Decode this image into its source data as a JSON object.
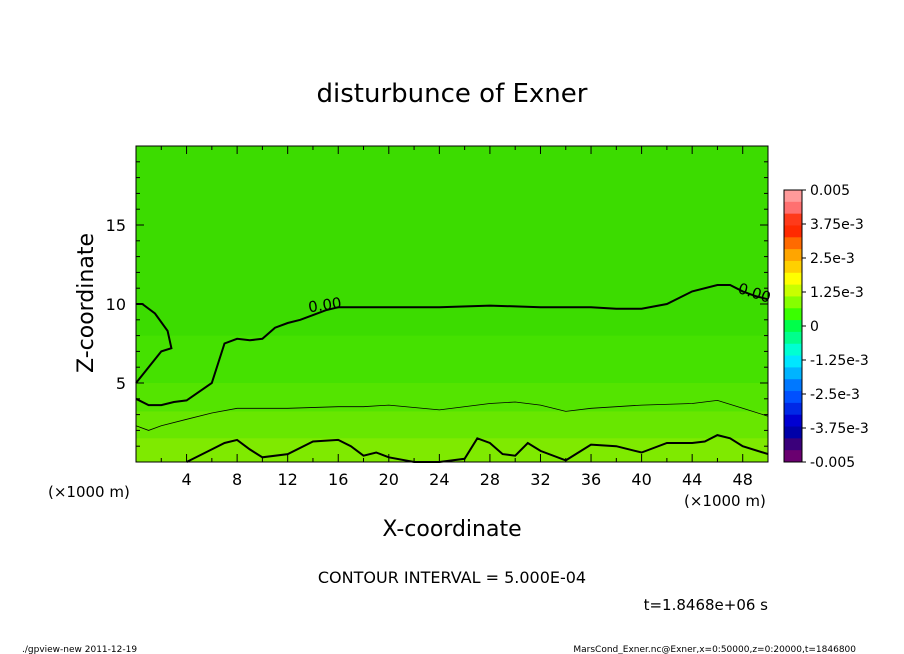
{
  "chart_data": {
    "type": "heatmap",
    "title": "disturbunce of Exner",
    "xlabel": "X-coordinate",
    "ylabel": "Z-coordinate",
    "x_unit_left": "(×1000 m)",
    "x_unit_right": "(×1000 m)",
    "xlim": [
      0,
      50
    ],
    "ylim": [
      0,
      20
    ],
    "x_ticks": [
      "4",
      "8",
      "12",
      "16",
      "20",
      "24",
      "28",
      "32",
      "36",
      "40",
      "44",
      "48"
    ],
    "y_ticks": [
      "5",
      "10",
      "15"
    ],
    "contour_labels": [
      "0.00",
      "0.00"
    ],
    "contour_interval_text": "CONTOUR INTERVAL = 5.000E-04",
    "time_text": "t=1.8468e+06 s",
    "footer_left": "./gpview-new   2011-12-19",
    "footer_right": "MarsCond_Exner.nc@Exner,x=0:50000,z=0:20000,t=1846800",
    "zero_contour_upper": {
      "x": [
        0,
        1,
        2,
        3,
        4,
        6,
        7,
        8,
        9,
        10,
        11,
        12,
        13,
        14,
        15,
        16,
        20,
        24,
        28,
        32,
        36,
        38,
        40,
        42,
        44,
        46,
        47,
        48,
        49,
        50
      ],
      "z": [
        4.0,
        3.6,
        3.6,
        3.8,
        3.9,
        5.0,
        7.5,
        7.8,
        7.7,
        7.8,
        8.5,
        8.8,
        9.0,
        9.3,
        9.6,
        9.8,
        9.8,
        9.8,
        9.9,
        9.8,
        9.8,
        9.7,
        9.7,
        10.0,
        10.8,
        11.2,
        11.2,
        10.8,
        10.5,
        10.3
      ]
    },
    "zero_contour_left_top": {
      "x": [
        0,
        0.5,
        1.5,
        2.5,
        2.8,
        2.0,
        1.0,
        0
      ],
      "z": [
        10.0,
        10.0,
        9.4,
        8.3,
        7.2,
        7.0,
        6.0,
        5.0
      ]
    },
    "thin_contour": {
      "x": [
        0,
        1,
        2,
        4,
        6,
        8,
        12,
        16,
        18,
        20,
        24,
        28,
        30,
        32,
        34,
        36,
        40,
        44,
        46,
        48,
        50
      ],
      "z": [
        2.3,
        2.0,
        2.3,
        2.7,
        3.1,
        3.4,
        3.4,
        3.5,
        3.5,
        3.6,
        3.3,
        3.7,
        3.8,
        3.6,
        3.2,
        3.4,
        3.6,
        3.7,
        3.9,
        3.4,
        2.9
      ]
    },
    "bottom_contour": {
      "x": [
        4,
        6,
        7,
        8,
        9,
        10,
        12,
        14,
        16,
        17,
        18,
        19,
        20,
        22,
        24,
        26,
        27,
        28,
        29,
        30,
        31,
        32,
        34,
        36,
        38,
        40,
        42,
        44,
        45,
        46,
        47,
        48,
        50
      ],
      "z": [
        0,
        0.8,
        1.2,
        1.4,
        0.8,
        0.3,
        0.5,
        1.3,
        1.4,
        1.0,
        0.4,
        0.6,
        0.3,
        0,
        0,
        0.2,
        1.5,
        1.2,
        0.5,
        0.4,
        1.2,
        0.7,
        0.1,
        1.1,
        1.0,
        0.6,
        1.2,
        1.2,
        1.3,
        1.7,
        1.5,
        1.0,
        0.5
      ]
    },
    "colorbar": {
      "labels": [
        "0.005",
        "3.75e-3",
        "2.5e-3",
        "1.25e-3",
        "0",
        "-1.25e-3",
        "-2.5e-3",
        "-3.75e-3",
        "-0.005"
      ],
      "colors": [
        "#ff9a9a",
        "#ff7070",
        "#ff3a1a",
        "#ff2a00",
        "#ff6a00",
        "#ffa500",
        "#ffd000",
        "#ffff00",
        "#c8ff00",
        "#86ff00",
        "#3aff00",
        "#00ff4a",
        "#00ff8c",
        "#00ffd2",
        "#00e6ff",
        "#00b4ff",
        "#0078ff",
        "#0050ff",
        "#0028e6",
        "#0000d2",
        "#0000a8",
        "#3a007a",
        "#6a0070"
      ]
    },
    "bands": [
      {
        "color": "#4ce600",
        "zbottom": 8
      },
      {
        "color": "#60e800",
        "zbottom": 5
      },
      {
        "color": "#78ea00",
        "zbottom": 3.2
      },
      {
        "color": "#92ec00",
        "zbottom": 1.5
      },
      {
        "color": "#a8ee00",
        "zbottom": 0
      }
    ],
    "background_color": "#3cdc00"
  }
}
